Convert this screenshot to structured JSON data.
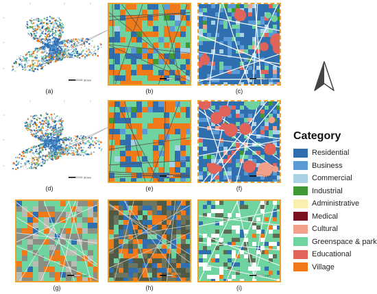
{
  "legend": {
    "title": "Category",
    "items": [
      {
        "label": "Residential",
        "color": "#2f6fb0"
      },
      {
        "label": "Business",
        "color": "#5b9bd5"
      },
      {
        "label": "Commercial",
        "color": "#a9d2e6"
      },
      {
        "label": "Industrial",
        "color": "#3f9a35"
      },
      {
        "label": "Administrative",
        "color": "#f8efb0"
      },
      {
        "label": "Medical",
        "color": "#7a1020"
      },
      {
        "label": "Cultural",
        "color": "#f2a08a"
      },
      {
        "label": "Greenspace & park",
        "color": "#6fd3a0"
      },
      {
        "label": "Educational",
        "color": "#e0645a"
      },
      {
        "label": "Village",
        "color": "#f07a1a"
      }
    ]
  },
  "panels": [
    {
      "id": "a",
      "label": "(a)"
    },
    {
      "id": "b",
      "label": "(b)"
    },
    {
      "id": "c",
      "label": "(c)"
    },
    {
      "id": "d",
      "label": "(d)"
    },
    {
      "id": "e",
      "label": "(e)"
    },
    {
      "id": "f",
      "label": "(f)"
    },
    {
      "id": "g",
      "label": "(g)"
    },
    {
      "id": "h",
      "label": "(h)"
    },
    {
      "id": "i",
      "label": "(i)"
    }
  ],
  "scale_text": {
    "large": "30 km",
    "small": "1 km"
  },
  "north_icon": "north-arrow-icon",
  "frame_color": "#f0a12a"
}
